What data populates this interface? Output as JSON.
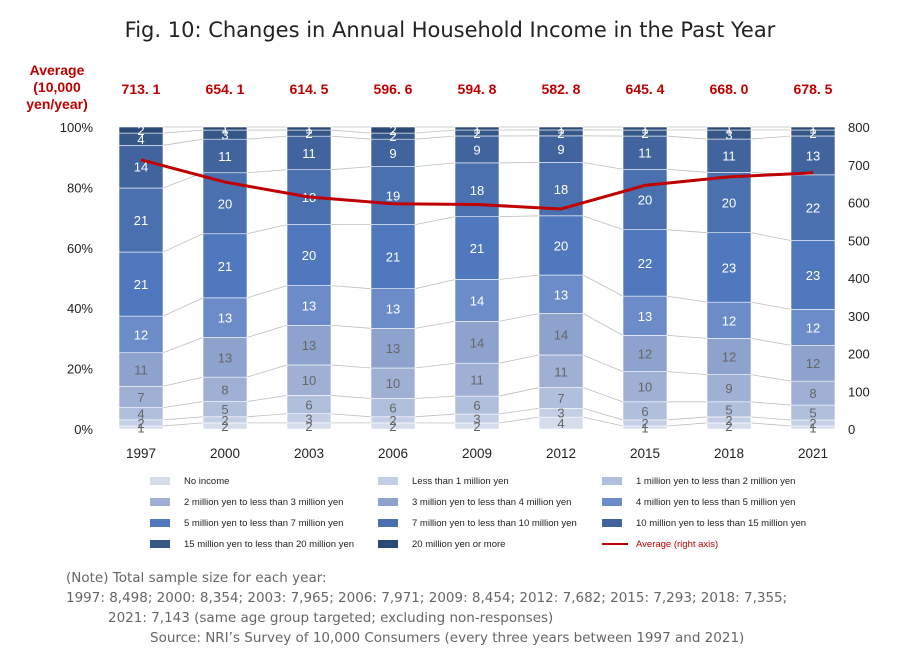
{
  "title": "Fig. 10: Changes in Annual Household Income in the Past Year",
  "average_header": "Average (10,000 yen/year)",
  "chart_data": {
    "type": "bar",
    "stacked": true,
    "categories": [
      "1997",
      "2000",
      "2003",
      "2006",
      "2009",
      "2012",
      "2015",
      "2018",
      "2021"
    ],
    "series": [
      {
        "name": "No income",
        "color": "#d5dcec",
        "values": [
          1,
          2,
          2,
          2,
          2,
          4,
          1,
          2,
          1
        ]
      },
      {
        "name": "Less than 1 million yen",
        "color": "#c4cfe6",
        "values": [
          2,
          2,
          3,
          2,
          3,
          3,
          2,
          2,
          2
        ]
      },
      {
        "name": "1 million yen to less than 2 million yen",
        "color": "#b0bfdc",
        "values": [
          4,
          5,
          6,
          6,
          6,
          7,
          6,
          5,
          5
        ]
      },
      {
        "name": "2 million yen to less than 3 million yen",
        "color": "#9fb0d4",
        "values": [
          7,
          8,
          10,
          10,
          11,
          11,
          10,
          9,
          8
        ]
      },
      {
        "name": "3 million yen to less than 4 million yen",
        "color": "#8da2cc",
        "values": [
          11,
          13,
          13,
          13,
          14,
          14,
          12,
          12,
          12
        ]
      },
      {
        "name": "4 million yen to less than 5 million yen",
        "color": "#6b8cc9",
        "values": [
          12,
          13,
          13,
          13,
          14,
          13,
          13,
          12,
          12
        ]
      },
      {
        "name": "5 million yen to less than 7 million yen",
        "color": "#4f78bf",
        "values": [
          21,
          21,
          20,
          21,
          21,
          20,
          22,
          23,
          23
        ]
      },
      {
        "name": "7 million yen to less than 10 million yen",
        "color": "#4a70b0",
        "values": [
          21,
          20,
          18,
          19,
          18,
          18,
          20,
          20,
          22
        ]
      },
      {
        "name": "10 million yen to less than 15 million yen",
        "color": "#41639e",
        "values": [
          14,
          11,
          11,
          9,
          9,
          9,
          11,
          11,
          13
        ]
      },
      {
        "name": "15 million yen to less than 20 million yen",
        "color": "#365889",
        "values": [
          4,
          3,
          2,
          2,
          2,
          2,
          2,
          3,
          2
        ]
      },
      {
        "name": "20 million yen or more",
        "color": "#2b4a75",
        "values": [
          2,
          1,
          1,
          2,
          1,
          1,
          1,
          1,
          1
        ]
      }
    ],
    "average": {
      "name": "Average (right axis)",
      "color": "#c00000",
      "values": [
        713.1,
        654.1,
        614.5,
        596.6,
        594.8,
        582.8,
        645.4,
        668.0,
        678.5
      ],
      "labels": [
        "713. 1",
        "654. 1",
        "614. 5",
        "596. 6",
        "594. 8",
        "582. 8",
        "645. 4",
        "668. 0",
        "678. 5"
      ]
    },
    "y_left": {
      "min": 0,
      "max": 100,
      "ticks": [
        "0%",
        "20%",
        "40%",
        "60%",
        "80%",
        "100%"
      ]
    },
    "y_right": {
      "min": 0,
      "max": 800,
      "ticks": [
        "0",
        "100",
        "200",
        "300",
        "400",
        "500",
        "600",
        "700",
        "800"
      ]
    },
    "xlabel": "",
    "ylabel": "",
    "grid": false,
    "legend_position": "bottom"
  },
  "notes": {
    "line1": "(Note) Total sample size for each year:",
    "line2": "1997: 8,498; 2000: 8,354; 2003: 7,965; 2006: 7,971; 2009: 8,454; 2012: 7,682; 2015: 7,293; 2018: 7,355;",
    "line3": "2021: 7,143 (same age group targeted; excluding non-responses)",
    "source": "Source: NRI’s Survey of 10,000 Consumers (every three years between 1997 and 2021)"
  }
}
